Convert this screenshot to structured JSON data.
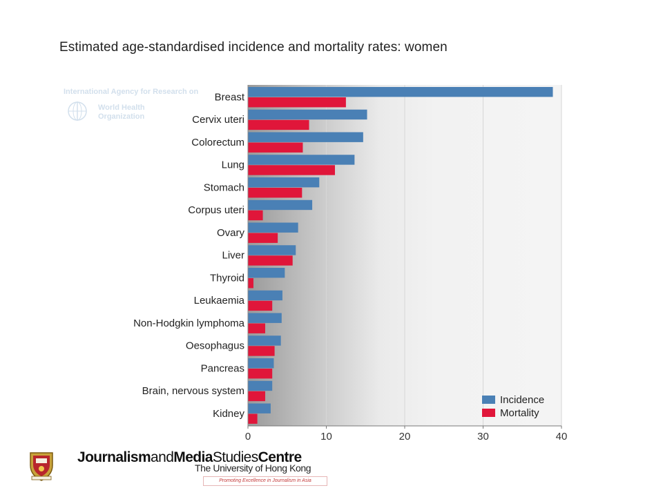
{
  "colors": {
    "incidence": "#4a80b5",
    "mortality": "#e0163a",
    "tagline": "#c43a3a"
  },
  "watermark": {
    "line1": "International Agency for Research on",
    "line2a": "World Health",
    "line2b": "Organization"
  },
  "footer": {
    "brand_parts": [
      "Journalism",
      "and",
      "Media",
      "Studies",
      "Centre"
    ],
    "university": "The University of Hong Kong",
    "tagline": "Promoting Excellence in Journalism in Asia",
    "logo_icon": "hku-crest-icon"
  },
  "chart_data": {
    "type": "bar",
    "orientation": "horizontal",
    "title": "Estimated age-standardised incidence and mortality rates: women",
    "categories": [
      "Breast",
      "Cervix uteri",
      "Colorectum",
      "Lung",
      "Stomach",
      "Corpus uteri",
      "Ovary",
      "Liver",
      "Thyroid",
      "Leukaemia",
      "Non-Hodgkin lymphoma",
      "Oesophagus",
      "Pancreas",
      "Brain, nervous system",
      "Kidney"
    ],
    "series": [
      {
        "name": "Incidence",
        "values": [
          38.9,
          15.2,
          14.7,
          13.6,
          9.1,
          8.2,
          6.4,
          6.1,
          4.7,
          4.4,
          4.3,
          4.2,
          3.3,
          3.1,
          2.9
        ]
      },
      {
        "name": "Mortality",
        "values": [
          12.5,
          7.8,
          7.0,
          11.1,
          6.9,
          1.9,
          3.8,
          5.7,
          0.7,
          3.1,
          2.2,
          3.4,
          3.1,
          2.2,
          1.2
        ]
      }
    ],
    "xlim": [
      0,
      40
    ],
    "xticks": [
      0,
      10,
      20,
      30,
      40
    ],
    "grid": true,
    "legend_position": "bottom-right"
  }
}
